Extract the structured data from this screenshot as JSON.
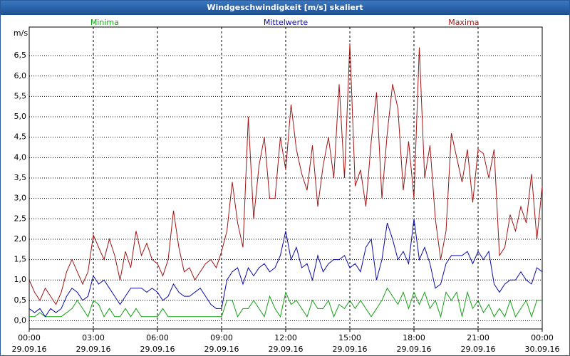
{
  "chart_data": {
    "type": "line",
    "title": "Windgeschwindigkeit [m/s] skaliert",
    "y_label": "m/s",
    "x": [
      0,
      15,
      30,
      45,
      60,
      75,
      90,
      105,
      120,
      135,
      150,
      165,
      180,
      195,
      210,
      225,
      240,
      255,
      270,
      285,
      300,
      315,
      330,
      345,
      360,
      375,
      390,
      405,
      420,
      435,
      450,
      465,
      480,
      495,
      510,
      525,
      540,
      555,
      570,
      585,
      600,
      615,
      630,
      645,
      660,
      675,
      690,
      705,
      720,
      735,
      750,
      765,
      780,
      795,
      810,
      825,
      840,
      855,
      870,
      885,
      900,
      915,
      930,
      945,
      960,
      975,
      990,
      1005,
      1020,
      1035,
      1050,
      1065,
      1080,
      1095,
      1110,
      1125,
      1140,
      1155,
      1170,
      1185,
      1200,
      1215,
      1230,
      1245,
      1260,
      1275,
      1290,
      1305,
      1320,
      1335,
      1350,
      1365,
      1380,
      1395,
      1410,
      1425,
      1440
    ],
    "xlim": [
      0,
      1440
    ],
    "xticks": [
      {
        "value": 0,
        "label": "00:00\n29.09.16"
      },
      {
        "value": 180,
        "label": "03:00\n29.09.16"
      },
      {
        "value": 360,
        "label": "06:00\n29.09.16"
      },
      {
        "value": 540,
        "label": "09:00\n29.09.16"
      },
      {
        "value": 720,
        "label": "12:00\n29.09.16"
      },
      {
        "value": 900,
        "label": "15:00\n29.09.16"
      },
      {
        "value": 1080,
        "label": "18:00\n29.09.16"
      },
      {
        "value": 1260,
        "label": "21:00\n29.09.16"
      },
      {
        "value": 1440,
        "label": "00:00\n30.09.16"
      }
    ],
    "ylim": [
      -0.2,
      7.2
    ],
    "yticks": [
      {
        "value": 0,
        "label": "0,0"
      },
      {
        "value": 0.5,
        "label": "0,5"
      },
      {
        "value": 1,
        "label": "1,0"
      },
      {
        "value": 1.5,
        "label": "1,5"
      },
      {
        "value": 2,
        "label": "2,0"
      },
      {
        "value": 2.5,
        "label": "2,5"
      },
      {
        "value": 3,
        "label": "3,0"
      },
      {
        "value": 3.5,
        "label": "3,5"
      },
      {
        "value": 4,
        "label": "4,0"
      },
      {
        "value": 4.5,
        "label": "4,5"
      },
      {
        "value": 5,
        "label": "5,0"
      },
      {
        "value": 5.5,
        "label": "5,5"
      },
      {
        "value": 6,
        "label": "6,0"
      },
      {
        "value": 6.5,
        "label": "6,5"
      }
    ],
    "grid": true,
    "series": [
      {
        "name": "Minima",
        "color": "#14a014",
        "values": [
          0.1,
          0.1,
          0.2,
          0.1,
          0.1,
          0.1,
          0.1,
          0.2,
          0.3,
          0.5,
          0.3,
          0.1,
          0.5,
          0.4,
          0.1,
          0.3,
          0.1,
          0.1,
          0.3,
          0.1,
          0.3,
          0.1,
          0.1,
          0.1,
          0.1,
          0.3,
          0.1,
          0.1,
          0.1,
          0.1,
          0.1,
          0.1,
          0.1,
          0.1,
          0.1,
          0.1,
          0.1,
          0.5,
          0.5,
          0.1,
          0.3,
          0.3,
          0.5,
          0.3,
          0.1,
          0.6,
          0.3,
          0.1,
          0.7,
          0.4,
          0.5,
          0.3,
          0.1,
          0.5,
          0.3,
          0.3,
          0.5,
          0.1,
          0.4,
          0.3,
          0.5,
          0.3,
          0.5,
          0.3,
          0.1,
          0.3,
          0.5,
          0.8,
          0.6,
          0.4,
          0.7,
          0.3,
          0.7,
          0.4,
          0.7,
          0.3,
          0.5,
          0.1,
          0.7,
          0.5,
          0.7,
          0.1,
          0.7,
          0.3,
          0.5,
          0.2,
          0.4,
          0.1,
          0.3,
          0.1,
          0.5,
          0.1,
          0.3,
          0.5,
          0.1,
          0.5,
          0.5
        ]
      },
      {
        "name": "Mittelwerte",
        "color": "#0a0aa8",
        "values": [
          0.3,
          0.2,
          0.3,
          0.1,
          0.3,
          0.2,
          0.3,
          0.6,
          0.8,
          0.7,
          0.5,
          0.6,
          1.1,
          0.9,
          1.0,
          0.8,
          0.6,
          0.4,
          0.6,
          0.8,
          0.8,
          0.8,
          0.7,
          0.8,
          0.7,
          0.5,
          0.6,
          0.9,
          0.7,
          0.6,
          0.6,
          0.7,
          0.8,
          0.6,
          0.4,
          0.3,
          0.3,
          1.0,
          1.2,
          1.3,
          0.9,
          1.3,
          1.1,
          1.3,
          1.4,
          1.2,
          1.3,
          1.6,
          2.2,
          1.5,
          1.8,
          1.3,
          1.4,
          1.0,
          1.6,
          1.2,
          1.4,
          1.5,
          1.5,
          1.6,
          1.3,
          1.4,
          1.2,
          1.8,
          2.0,
          1.0,
          1.5,
          2.4,
          2.0,
          1.5,
          1.7,
          1.4,
          2.5,
          1.5,
          1.8,
          1.4,
          0.8,
          0.9,
          1.4,
          1.6,
          1.6,
          1.6,
          1.7,
          1.4,
          1.7,
          1.5,
          1.7,
          0.9,
          0.7,
          0.9,
          1.0,
          1.0,
          1.2,
          1.0,
          0.9,
          1.3,
          1.2
        ]
      },
      {
        "name": "Maxima",
        "color": "#a01414",
        "values": [
          1.0,
          0.7,
          0.5,
          0.8,
          0.6,
          0.4,
          0.7,
          1.2,
          1.5,
          1.2,
          0.9,
          1.2,
          2.1,
          1.8,
          1.5,
          2.0,
          1.6,
          1.0,
          1.7,
          1.3,
          2.2,
          1.6,
          1.9,
          1.5,
          1.4,
          1.1,
          1.5,
          2.7,
          1.8,
          1.2,
          1.3,
          1.0,
          1.2,
          1.4,
          1.5,
          1.3,
          1.7,
          2.2,
          3.4,
          2.4,
          1.8,
          5.0,
          2.5,
          3.8,
          4.5,
          3.0,
          3.0,
          4.5,
          3.7,
          5.3,
          4.2,
          3.6,
          3.2,
          4.3,
          2.8,
          3.8,
          4.5,
          3.5,
          5.8,
          3.5,
          6.8,
          3.3,
          3.7,
          2.8,
          4.4,
          5.6,
          3.0,
          4.6,
          5.8,
          5.2,
          3.2,
          4.4,
          3.0,
          6.7,
          3.5,
          4.3,
          2.5,
          1.5,
          2.2,
          4.6,
          4.0,
          3.4,
          4.2,
          2.9,
          4.2,
          4.1,
          3.5,
          4.2,
          1.6,
          1.8,
          2.6,
          2.2,
          2.8,
          2.4,
          3.6,
          2.0,
          3.3
        ]
      }
    ]
  }
}
